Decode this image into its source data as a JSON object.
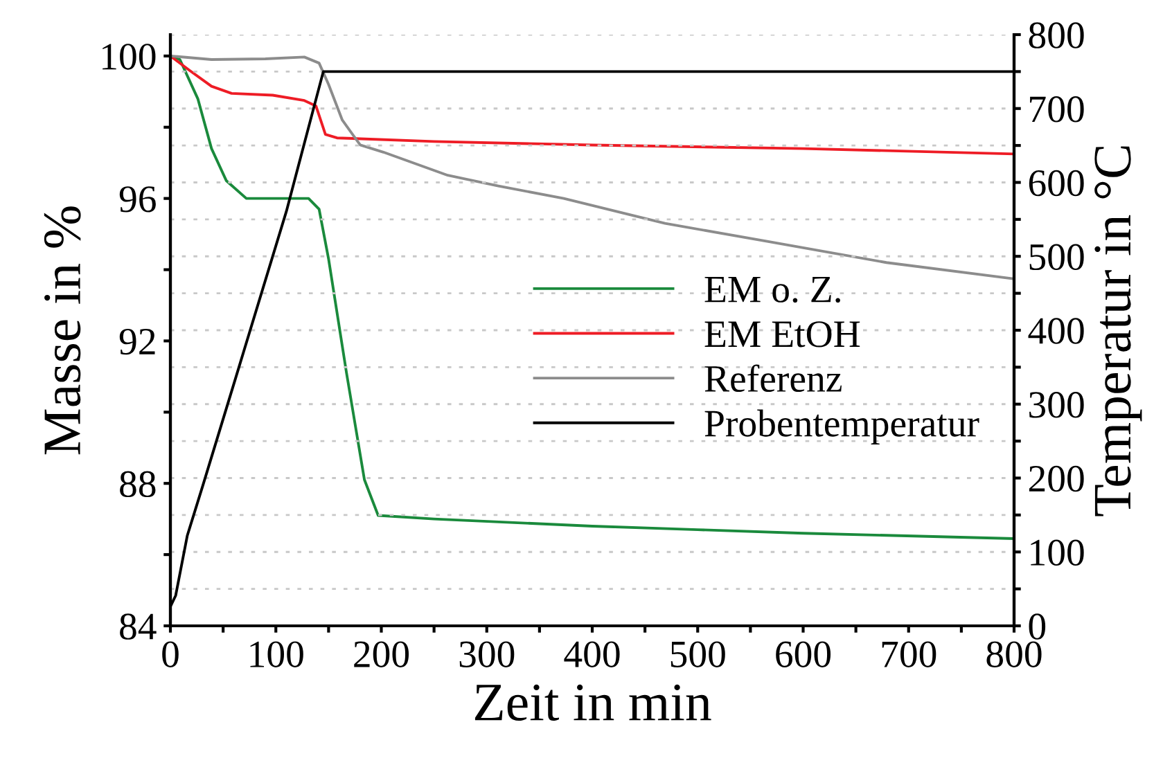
{
  "chart_data": {
    "type": "line",
    "xlabel": "Zeit in min",
    "ylabel": "Masse in %",
    "y2label": "Temperatur in °C",
    "xlim": [
      0,
      800
    ],
    "xticks": [
      0,
      {
        "value": 50,
        "label": null
      },
      100,
      {
        "value": 150,
        "label": null
      },
      200,
      {
        "value": 250,
        "label": null
      },
      300,
      {
        "value": 350,
        "label": null
      },
      400,
      {
        "value": 450,
        "label": null
      },
      500,
      {
        "value": 550,
        "label": null
      },
      600,
      {
        "value": 650,
        "label": null
      },
      700,
      {
        "value": 750,
        "label": null
      },
      800
    ],
    "ylim": [
      84,
      100.6
    ],
    "yticks": [
      84,
      {
        "value": 86,
        "label": null
      },
      88,
      {
        "value": 90,
        "label": null
      },
      92,
      {
        "value": 94,
        "label": null
      },
      96,
      {
        "value": 98,
        "label": null
      },
      100
    ],
    "y2lim": [
      0,
      800
    ],
    "y2ticks": [
      0,
      {
        "value": 50,
        "label": null
      },
      100,
      {
        "value": 150,
        "label": null
      },
      200,
      {
        "value": 250,
        "label": null
      },
      300,
      {
        "value": 350,
        "label": null
      },
      400,
      {
        "value": 450,
        "label": null
      },
      500,
      {
        "value": 550,
        "label": null
      },
      600,
      {
        "value": 650,
        "label": null
      },
      700,
      {
        "value": 750,
        "label": null
      },
      800
    ],
    "grid": "y2",
    "legend": "right",
    "marker": "none",
    "line_style": "solid",
    "series": [
      {
        "name": "EM o. Z.",
        "color": "#1a8a3c",
        "x": [
          0,
          9,
          26,
          39,
          53,
          72,
          131,
          141,
          150,
          167,
          184,
          197,
          250,
          400,
          500,
          600,
          800
        ],
        "values": [
          100,
          99.9,
          98.8,
          97.4,
          96.5,
          96.0,
          96.0,
          95.7,
          94.3,
          91.1,
          88.1,
          87.1,
          87.0,
          86.8,
          86.7,
          86.6,
          86.45
        ]
      },
      {
        "name": "EM EtOH",
        "color": "#ee1c25",
        "x": [
          0,
          18,
          39,
          58,
          97,
          127,
          138,
          147,
          158,
          250,
          400,
          600,
          800
        ],
        "values": [
          100,
          99.6,
          99.15,
          98.95,
          98.9,
          98.75,
          98.6,
          97.8,
          97.7,
          97.6,
          97.5,
          97.4,
          97.25
        ]
      },
      {
        "name": "Referenz",
        "color": "#8c8c8c",
        "x": [
          0,
          39,
          90,
          127,
          141,
          150,
          163,
          180,
          202,
          263,
          311,
          373,
          469,
          565,
          679,
          798
        ],
        "values": [
          100,
          99.9,
          99.92,
          99.97,
          99.8,
          99.2,
          98.2,
          97.5,
          97.3,
          96.65,
          96.35,
          96.0,
          95.3,
          94.8,
          94.2,
          93.75
        ]
      },
      {
        "name": "Probentemperatur",
        "color": "#000000",
        "axis": "y2",
        "x": [
          0,
          5,
          16,
          31,
          62,
          110,
          145,
          800
        ],
        "values": [
          26,
          41,
          122,
          191,
          336,
          561,
          750,
          750
        ]
      }
    ]
  }
}
